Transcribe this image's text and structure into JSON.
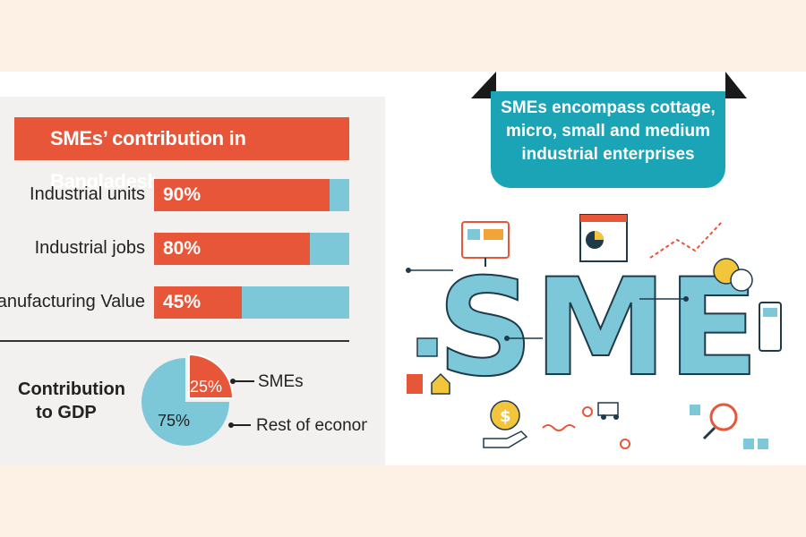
{
  "title": "SMEs’ contribution in Bangladesh",
  "callout": {
    "lines": [
      "SMEs encompass cottage,",
      "micro, small and medium",
      "industrial enterprises"
    ]
  },
  "illustration": {
    "word": "SME"
  },
  "colors": {
    "accent": "#e8563a",
    "teal": "#7cc8d8",
    "callout": "#1ba3b6"
  },
  "chart_data": [
    {
      "type": "bar",
      "title": "SMEs’ contribution in Bangladesh",
      "categories": [
        "Industrial units",
        "Industrial jobs",
        "Manufacturing Value"
      ],
      "values": [
        90,
        80,
        45
      ],
      "value_labels": [
        "90%",
        "80%",
        "45%"
      ],
      "ylim": [
        0,
        100
      ],
      "orientation": "horizontal"
    },
    {
      "type": "pie",
      "title": "Contribution to GDP",
      "title_lines": [
        "Contribution",
        "to GDP"
      ],
      "slices": [
        {
          "label": "SMEs",
          "value": 25,
          "value_label": "25%",
          "color": "#e8563a"
        },
        {
          "label": "Rest of economy",
          "value": 75,
          "value_label": "75%",
          "color": "#7cc8d8"
        }
      ]
    }
  ]
}
